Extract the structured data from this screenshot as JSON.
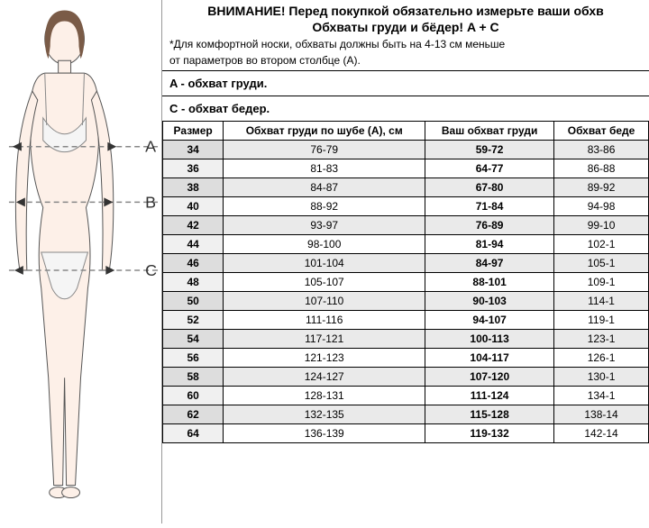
{
  "header": {
    "title1": "ВНИМАНИЕ! Перед покупкой обязательно измерьте ваши обхв",
    "title2": "Обхваты груди и бёдер! A + C",
    "note1": "*Для комфортной носки, обхваты должны быть на 4-13 см меньше",
    "note2": "от параметров во втором столбце (A)."
  },
  "section_a": "A - обхват груди.",
  "section_c": "C - обхват бедер.",
  "table": {
    "columns": [
      "Размер",
      "Обхват груди по шубе (A), см",
      "Ваш обхват груди",
      "Обхват беде"
    ],
    "col_bold": [
      true,
      false,
      true,
      false
    ],
    "rows": [
      [
        "34",
        "76-79",
        "59-72",
        "83-86"
      ],
      [
        "36",
        "81-83",
        "64-77",
        "86-88"
      ],
      [
        "38",
        "84-87",
        "67-80",
        "89-92"
      ],
      [
        "40",
        "88-92",
        "71-84",
        "94-98"
      ],
      [
        "42",
        "93-97",
        "76-89",
        "99-10"
      ],
      [
        "44",
        "98-100",
        "81-94",
        "102-1"
      ],
      [
        "46",
        "101-104",
        "84-97",
        "105-1"
      ],
      [
        "48",
        "105-107",
        "88-101",
        "109-1"
      ],
      [
        "50",
        "107-110",
        "90-103",
        "114-1"
      ],
      [
        "52",
        "111-116",
        "94-107",
        "119-1"
      ],
      [
        "54",
        "117-121",
        "100-113",
        "123-1"
      ],
      [
        "56",
        "121-123",
        "104-117",
        "126-1"
      ],
      [
        "58",
        "124-127",
        "107-120",
        "130-1"
      ],
      [
        "60",
        "128-131",
        "111-124",
        "134-1"
      ],
      [
        "62",
        "132-135",
        "115-128",
        "138-14"
      ],
      [
        "64",
        "136-139",
        "119-132",
        "142-14"
      ]
    ]
  },
  "figure": {
    "labels": [
      "A",
      "B",
      "C"
    ],
    "skin": "#fdf0e8",
    "underwear": "#f5f5f5",
    "hair": "#7a5b47",
    "outline": "#555",
    "arrow": "#333",
    "dash": "#888"
  }
}
